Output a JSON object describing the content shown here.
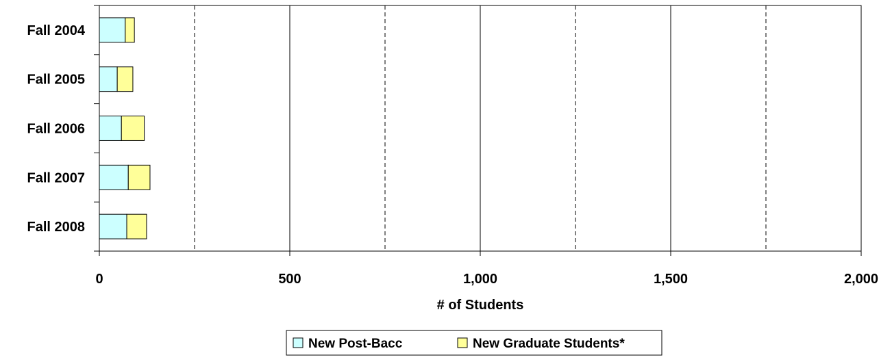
{
  "chart_data": {
    "type": "bar",
    "orientation": "horizontal",
    "stacked": true,
    "title": "",
    "xlabel": "# of Students",
    "ylabel": "",
    "xlim": [
      0,
      2000
    ],
    "x_ticks": [
      0,
      500,
      1000,
      1500,
      2000
    ],
    "x_tick_labels": [
      "0",
      "500",
      "1,000",
      "1,500",
      "2,000"
    ],
    "grid": "vertical",
    "legend_position": "bottom",
    "categories": [
      "Fall 2004",
      "Fall 2005",
      "Fall 2006",
      "Fall 2007",
      "Fall 2008"
    ],
    "series": [
      {
        "name": "New Post-Bacc",
        "color": "#CCFFFF",
        "values": [
          68,
          47,
          58,
          76,
          72
        ]
      },
      {
        "name": "New Graduate Students*",
        "color": "#FFFF99",
        "values": [
          24,
          41,
          60,
          57,
          52
        ]
      }
    ]
  }
}
